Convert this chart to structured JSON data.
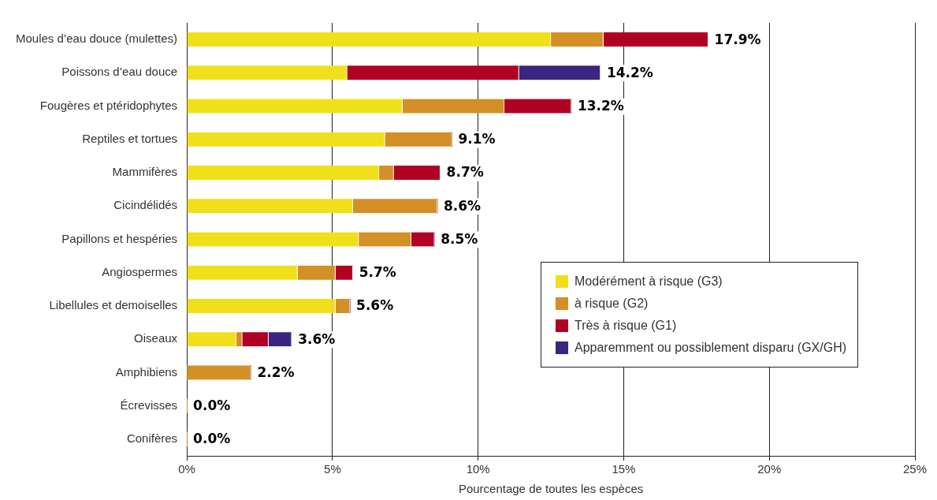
{
  "chart_data": {
    "type": "bar",
    "orientation": "horizontal",
    "stacked": true,
    "xlabel": "Pourcentage de toutes les espèces",
    "categories": [
      "Moules d’eau douce (mulettes)",
      "Poissons d’eau douce",
      "Fougères et ptéridophytes",
      "Reptiles et tortues",
      "Mammifères",
      "Cicindélidés",
      "Papillons et hespéries",
      "Angiospermes",
      "Libellules et demoiselles",
      "Oiseaux",
      "Amphibiens",
      "Écrevisses",
      "Conifères"
    ],
    "series": [
      {
        "name": "Modérément à risque (G3)",
        "color": "#f0e01c",
        "values": [
          12.5,
          5.5,
          7.4,
          6.8,
          6.6,
          5.7,
          5.9,
          3.8,
          5.1,
          1.7,
          0,
          0,
          0
        ]
      },
      {
        "name": "à risque (G2)",
        "color": "#d48f27",
        "values": [
          1.8,
          0,
          3.5,
          2.3,
          0.5,
          2.9,
          1.8,
          1.3,
          0.5,
          0.2,
          2.2,
          0,
          0
        ]
      },
      {
        "name": "Très à risque (G1)",
        "color": "#b00024",
        "values": [
          3.6,
          5.9,
          2.3,
          0,
          1.6,
          0,
          0.8,
          0.6,
          0,
          0.9,
          0,
          0,
          0
        ]
      },
      {
        "name": "Apparemment ou possiblement disparu (GX/GH)",
        "color": "#3a2680",
        "values": [
          0,
          2.8,
          0,
          0,
          0,
          0,
          0,
          0,
          0,
          0.8,
          0,
          0,
          0
        ]
      }
    ],
    "totals": [
      "17.9%",
      "14.2%",
      "13.2%",
      "9.1%",
      "8.7%",
      "8.6%",
      "8.5%",
      "5.7%",
      "5.6%",
      "3.6%",
      "2.2%",
      "0.0%",
      "0.0%"
    ],
    "xlim": [
      0,
      25
    ],
    "xticks": [
      {
        "value": 0,
        "label": "0%"
      },
      {
        "value": 5,
        "label": "5%"
      },
      {
        "value": 10,
        "label": "10%"
      },
      {
        "value": 15,
        "label": "15%"
      },
      {
        "value": 20,
        "label": "20%"
      },
      {
        "value": 25,
        "label": "25%"
      }
    ],
    "grid": "x",
    "legend": "right"
  }
}
